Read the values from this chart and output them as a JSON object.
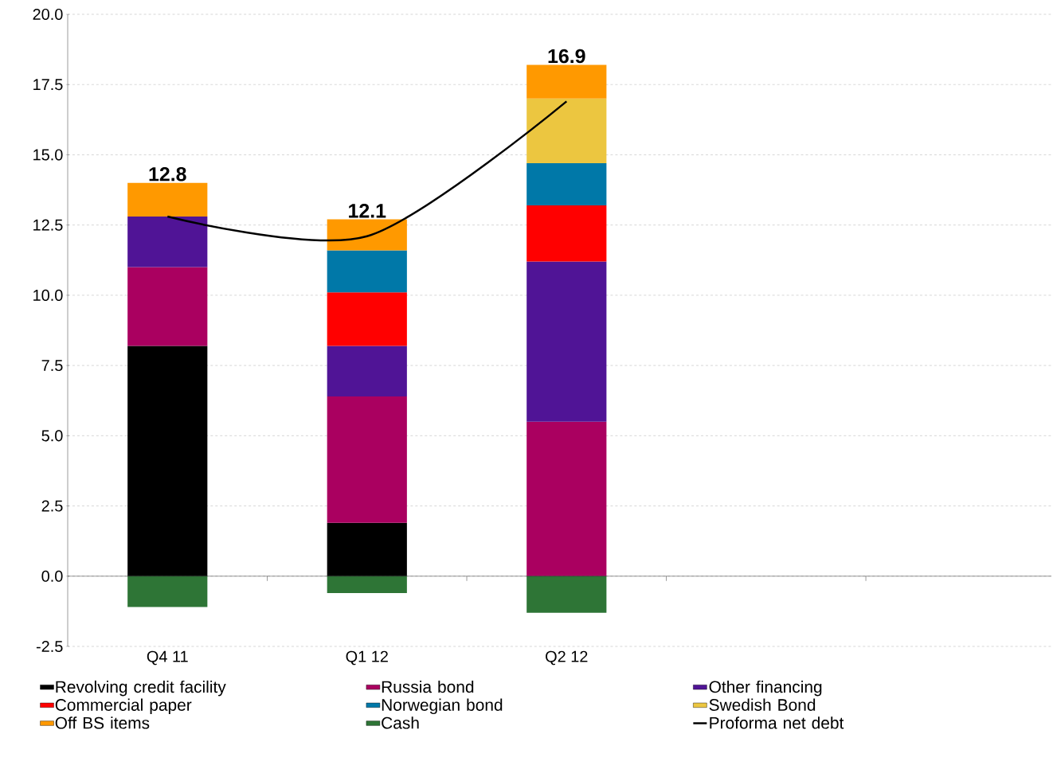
{
  "chart_data": {
    "type": "bar",
    "stacked": true,
    "categories": [
      "Q4 11",
      "Q1 12",
      "Q2 12",
      null,
      null
    ],
    "ylim": [
      -2.5,
      20
    ],
    "yticks": [
      {
        "value": -2.5,
        "label": "-2.5"
      },
      {
        "value": 0,
        "label": "0.0"
      },
      {
        "value": 2.5,
        "label": "2.5"
      },
      {
        "value": 5,
        "label": "5.0"
      },
      {
        "value": 7.5,
        "label": "7.5"
      },
      {
        "value": 10,
        "label": "10.0"
      },
      {
        "value": 12.5,
        "label": "12.5"
      },
      {
        "value": 15,
        "label": "15.0"
      },
      {
        "value": 17.5,
        "label": "17.5"
      },
      {
        "value": 20,
        "label": "20.0"
      }
    ],
    "grid": "y",
    "legend": "bottom",
    "series": [
      {
        "name": "Revolving credit facility",
        "color": "#000000",
        "values": [
          8.2,
          1.9,
          0,
          null,
          null
        ]
      },
      {
        "name": "Russia bond",
        "color": "#aa0060",
        "values": [
          2.8,
          4.5,
          5.5,
          null,
          null
        ]
      },
      {
        "name": "Other financing",
        "color": "#501496",
        "values": [
          1.8,
          1.8,
          5.7,
          null,
          null
        ]
      },
      {
        "name": "Commercial paper",
        "color": "#ff0000",
        "values": [
          null,
          1.9,
          2.0,
          null,
          null
        ]
      },
      {
        "name": "Norwegian bond",
        "color": "#0078a8",
        "values": [
          null,
          1.5,
          1.5,
          null,
          null
        ]
      },
      {
        "name": "Swedish Bond",
        "color": "#ecc640",
        "values": [
          null,
          null,
          2.3,
          null,
          null
        ]
      },
      {
        "name": "Off BS items",
        "color": "#ff9900",
        "values": [
          1.2,
          1.1,
          1.2,
          null,
          null
        ]
      },
      {
        "name": "Cash",
        "color": "#2e7536",
        "values": [
          -1.1,
          -0.6,
          -1.3,
          null,
          null
        ]
      },
      {
        "name": "Proforma net debt",
        "type": "line",
        "color": "#000000",
        "values": [
          12.8,
          12.1,
          16.9,
          null,
          null
        ],
        "value_labels": [
          "12.8",
          "12.1",
          "16.9",
          null,
          null
        ]
      }
    ]
  }
}
